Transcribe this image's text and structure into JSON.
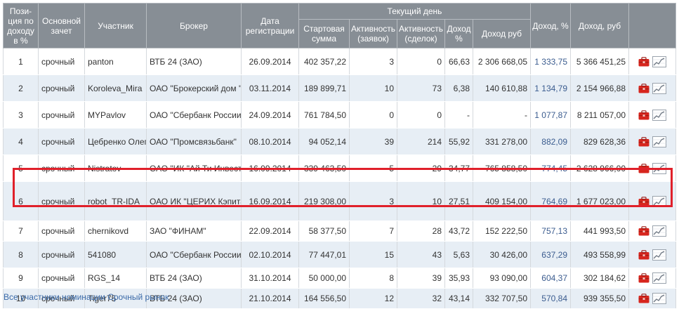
{
  "table": {
    "headers": {
      "position": "Пози-ция по доходу в %",
      "account": "Основной зачет",
      "participant": "Участник",
      "broker": "Брокер",
      "reg_date": "Дата регистрации",
      "current_day": "Текущий день",
      "start_sum": "Стартовая сумма",
      "activity_orders": "Активность (заявок)",
      "activity_deals": "Активность (сделок)",
      "income_pct": "Доход %",
      "income_rub": "Доход руб",
      "total_pct": "Доход, %",
      "total_rub": "Доход, руб"
    },
    "rows": [
      {
        "pos": "1",
        "account": "срочный",
        "participant": "panton",
        "broker": "ВТБ 24 (ЗАО)",
        "date": "26.09.2014",
        "start": "402 357,22",
        "orders": "3",
        "deals": "0",
        "day_pct": "66,63",
        "day_rub": "2 306 668,05",
        "total_pct": "1 333,75",
        "total_rub": "5 366 451,25"
      },
      {
        "pos": "2",
        "account": "срочный",
        "participant": "Koroleva_Mira",
        "broker": "ОАО \"Брокерский дом \"ОТКРЫТИЕ\"",
        "date": "03.11.2014",
        "start": "189 899,71",
        "orders": "10",
        "deals": "73",
        "day_pct": "6,38",
        "day_rub": "140 610,88",
        "total_pct": "1 134,79",
        "total_rub": "2 154 966,88"
      },
      {
        "pos": "3",
        "account": "срочный",
        "participant": "MYPavlov",
        "broker": "ОАО \"Сбербанк России\"",
        "date": "24.09.2014",
        "start": "761 784,50",
        "orders": "0",
        "deals": "0",
        "day_pct": "-",
        "day_rub": "-",
        "total_pct": "1 077,87",
        "total_rub": "8 211 057,00"
      },
      {
        "pos": "4",
        "account": "срочный",
        "participant": "Цебренко Олег",
        "broker": "ОАО \"Промсвязьбанк\"",
        "date": "08.10.2014",
        "start": "94 052,14",
        "orders": "39",
        "deals": "214",
        "day_pct": "55,92",
        "day_rub": "331 278,00",
        "total_pct": "882,09",
        "total_rub": "829 628,36"
      },
      {
        "pos": "5",
        "account": "срочный",
        "participant": "Nistratov",
        "broker": "ОАО \"ИК \"Ай Ти Инвест\"",
        "date": "16.09.2014",
        "start": "339 463,50",
        "orders": "5",
        "deals": "29",
        "day_pct": "34,77",
        "day_rub": "765 858,50",
        "total_pct": "774,45",
        "total_rub": "2 628 966,00"
      },
      {
        "pos": "6",
        "account": "срочный",
        "participant": "robot_TR-IDA",
        "broker": "ОАО ИК \"ЦЕРИХ Кэпитал Менеджмент\"",
        "date": "16.09.2014",
        "start": "219 308,00",
        "orders": "3",
        "deals": "10",
        "day_pct": "27,51",
        "day_rub": "409 154,00",
        "total_pct": "764,69",
        "total_rub": "1 677 023,00"
      },
      {
        "pos": "7",
        "account": "срочный",
        "participant": "chernikovd",
        "broker": "ЗАО \"ФИНАМ\"",
        "date": "22.09.2014",
        "start": "58 377,50",
        "orders": "7",
        "deals": "28",
        "day_pct": "43,72",
        "day_rub": "152 222,50",
        "total_pct": "757,13",
        "total_rub": "441 993,50"
      },
      {
        "pos": "8",
        "account": "срочный",
        "participant": "541080",
        "broker": "ОАО \"Сбербанк России\"",
        "date": "02.10.2014",
        "start": "77 447,01",
        "orders": "15",
        "deals": "43",
        "day_pct": "5,63",
        "day_rub": "30 426,00",
        "total_pct": "637,29",
        "total_rub": "493 558,99"
      },
      {
        "pos": "9",
        "account": "срочный",
        "participant": "RGS_14",
        "broker": "ВТБ 24 (ЗАО)",
        "date": "31.10.2014",
        "start": "50 000,00",
        "orders": "8",
        "deals": "39",
        "day_pct": "35,93",
        "day_rub": "93 090,00",
        "total_pct": "604,37",
        "total_rub": "302 184,62"
      },
      {
        "pos": "10",
        "account": "срочный",
        "participant": "Tiger75",
        "broker": "ВТБ 24 (ЗАО)",
        "date": "21.10.2014",
        "start": "164 556,50",
        "orders": "12",
        "deals": "32",
        "day_pct": "43,14",
        "day_rub": "332 707,50",
        "total_pct": "570,84",
        "total_rub": "939 355,50"
      }
    ]
  },
  "icons": {
    "portfolio": "briefcase-icon",
    "chart": "chart-icon"
  },
  "colors": {
    "header_bg": "#878e95",
    "row_alt": "#e7eef5",
    "highlight": "#e0202a",
    "link": "#3b6aa8",
    "income_blue": "#3b5c8f",
    "icon_red": "#d7261e"
  },
  "footer": {
    "link_text": "Все участники номинации Срочный рынок"
  }
}
